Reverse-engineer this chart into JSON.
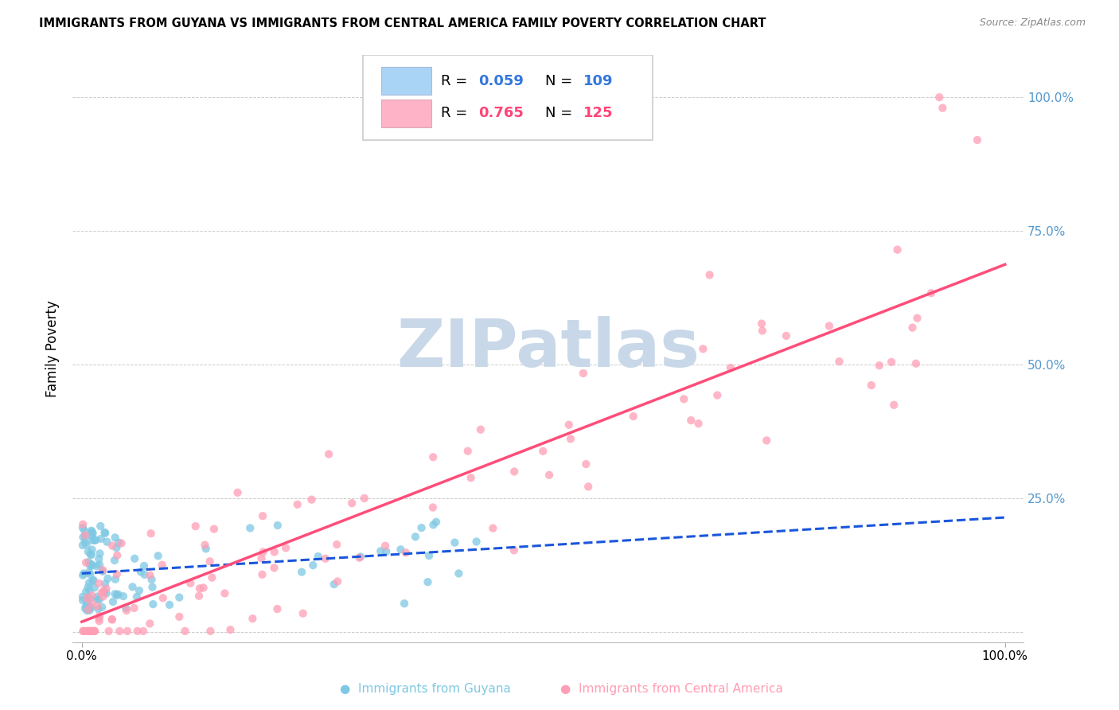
{
  "title": "IMMIGRANTS FROM GUYANA VS IMMIGRANTS FROM CENTRAL AMERICA FAMILY POVERTY CORRELATION CHART",
  "source": "Source: ZipAtlas.com",
  "ylabel": "Family Poverty",
  "guyana_R": 0.059,
  "guyana_N": 109,
  "central_R": 0.765,
  "central_N": 125,
  "guyana_color": "#7ec8e3",
  "central_color": "#ff9eb5",
  "guyana_line_color": "#1a56db",
  "central_line_color": "#ff4d79",
  "watermark": "ZIPatlas",
  "watermark_color": "#c8d8e8",
  "legend_box_color_guyana": "#aad4f5",
  "legend_box_color_central": "#ffb3c6",
  "xlim": [
    0.0,
    1.0
  ],
  "ylim": [
    0.0,
    1.0
  ],
  "right_ytick_labels": [
    "",
    "25.0%",
    "50.0%",
    "75.0%",
    "100.0%"
  ],
  "right_ytick_color": "#5599cc"
}
